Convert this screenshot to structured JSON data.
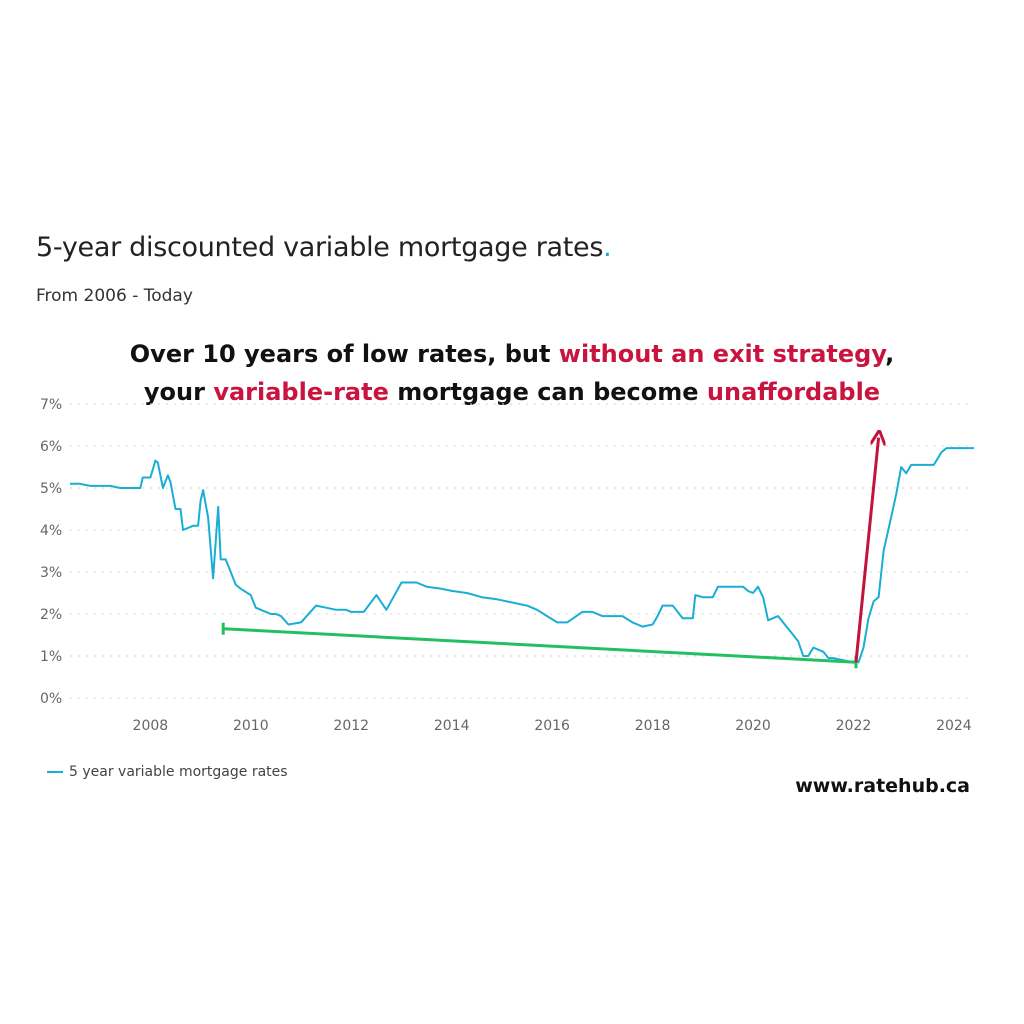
{
  "title": "5-year discounted variable mortgage rates",
  "title_dot": ".",
  "subtitle": "From 2006 - Today",
  "headline": {
    "line1_a": "Over 10 years of low rates, but ",
    "line1_b": "without an exit strategy",
    "line1_c": ",",
    "line2_a": "your ",
    "line2_b": "variable-rate",
    "line2_c": " mortgage can become ",
    "line2_d": "unaffordable"
  },
  "source": "www.ratehub.ca",
  "colors": {
    "line": "#1aaed4",
    "accent": "#c8143f",
    "trend": "#22c063",
    "arrow": "#c0143c"
  },
  "chart_data": {
    "type": "line",
    "xlim": [
      2006.4,
      2024.4
    ],
    "ylim": [
      0,
      7
    ],
    "grid": true,
    "legend_position": "bottom-left",
    "x_ticks": [
      2008,
      2010,
      2012,
      2014,
      2016,
      2018,
      2020,
      2022,
      2024
    ],
    "x_tick_labels": [
      "2008",
      "2010",
      "2012",
      "2014",
      "2016",
      "2018",
      "2020",
      "2022",
      "2024"
    ],
    "y_ticks": [
      0,
      1,
      2,
      3,
      4,
      5,
      6,
      7
    ],
    "y_tick_labels": [
      "0%",
      "1%",
      "2%",
      "3%",
      "4%",
      "5%",
      "6%",
      "7%"
    ],
    "series": [
      {
        "name": "5 year variable mortgage rates",
        "x": [
          2006.4,
          2006.6,
          2006.8,
          2007.0,
          2007.2,
          2007.4,
          2007.6,
          2007.8,
          2007.85,
          2007.9,
          2008.0,
          2008.1,
          2008.15,
          2008.25,
          2008.35,
          2008.4,
          2008.5,
          2008.6,
          2008.65,
          2008.75,
          2008.85,
          2008.95,
          2009.0,
          2009.05,
          2009.15,
          2009.25,
          2009.35,
          2009.4,
          2009.5,
          2009.7,
          2009.8,
          2010.0,
          2010.1,
          2010.2,
          2010.3,
          2010.4,
          2010.5,
          2010.6,
          2010.75,
          2011.0,
          2011.3,
          2011.5,
          2011.7,
          2011.8,
          2011.9,
          2012.0,
          2012.05,
          2012.15,
          2012.25,
          2012.5,
          2012.7,
          2013.0,
          2013.3,
          2013.5,
          2013.8,
          2014.0,
          2014.3,
          2014.6,
          2014.9,
          2015.1,
          2015.5,
          2015.7,
          2015.9,
          2016.1,
          2016.3,
          2016.6,
          2016.8,
          2017.0,
          2017.2,
          2017.4,
          2017.6,
          2017.8,
          2018.0,
          2018.1,
          2018.2,
          2018.4,
          2018.6,
          2018.8,
          2018.85,
          2019.0,
          2019.2,
          2019.3,
          2019.5,
          2019.6,
          2019.8,
          2019.9,
          2020.0,
          2020.1,
          2020.2,
          2020.3,
          2020.5,
          2020.7,
          2020.8,
          2020.9,
          2021.0,
          2021.1,
          2021.2,
          2021.4,
          2021.5,
          2021.6,
          2021.8,
          2022.0,
          2022.1,
          2022.2,
          2022.3,
          2022.4,
          2022.5,
          2022.6,
          2022.75,
          2022.85,
          2022.95,
          2023.05,
          2023.15,
          2023.3,
          2023.45,
          2023.6,
          2023.75,
          2023.85,
          2024.0,
          2024.4
        ],
        "values": [
          5.1,
          5.1,
          5.05,
          5.05,
          5.05,
          5.0,
          5.0,
          5.0,
          5.25,
          5.25,
          5.25,
          5.65,
          5.6,
          5.0,
          5.3,
          5.15,
          4.5,
          4.5,
          4.0,
          4.05,
          4.1,
          4.1,
          4.7,
          4.95,
          4.3,
          2.85,
          4.55,
          3.3,
          3.3,
          2.7,
          2.6,
          2.45,
          2.15,
          2.1,
          2.05,
          2.0,
          2.0,
          1.95,
          1.75,
          1.8,
          2.2,
          2.15,
          2.1,
          2.1,
          2.1,
          2.05,
          2.05,
          2.05,
          2.05,
          2.45,
          2.1,
          2.75,
          2.75,
          2.65,
          2.6,
          2.55,
          2.5,
          2.4,
          2.35,
          2.3,
          2.2,
          2.1,
          1.95,
          1.8,
          1.8,
          2.05,
          2.05,
          1.95,
          1.95,
          1.95,
          1.8,
          1.7,
          1.75,
          1.95,
          2.2,
          2.2,
          1.9,
          1.9,
          2.45,
          2.4,
          2.4,
          2.65,
          2.65,
          2.65,
          2.65,
          2.55,
          2.5,
          2.65,
          2.4,
          1.85,
          1.95,
          1.65,
          1.5,
          1.35,
          1.0,
          1.0,
          1.2,
          1.1,
          0.95,
          0.95,
          0.9,
          0.85,
          0.85,
          1.2,
          1.9,
          2.3,
          2.4,
          3.5,
          4.3,
          4.85,
          5.5,
          5.35,
          5.55,
          5.55,
          5.55,
          5.55,
          5.85,
          5.95,
          5.95,
          5.95
        ]
      }
    ],
    "annotations": [
      {
        "type": "trend-line",
        "from": [
          2009.45,
          1.65
        ],
        "to": [
          2022.05,
          0.85
        ]
      },
      {
        "type": "arrow",
        "from": [
          2022.05,
          0.85
        ],
        "to": [
          2022.5,
          6.2
        ]
      }
    ]
  }
}
